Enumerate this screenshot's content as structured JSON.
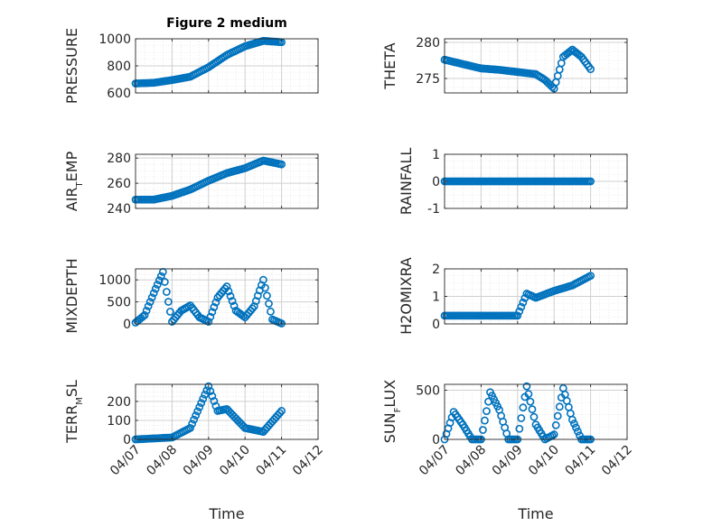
{
  "figure": {
    "title": "Figure 2 medium"
  },
  "style": {
    "marker_color": "#0072BD",
    "axis_color": "#262626",
    "grid_color": "#dedede"
  },
  "chart_data": [
    {
      "type": "scatter",
      "ylabel": "PRESSURE",
      "xlabel": "",
      "ylim": [
        600,
        1000
      ],
      "yticks": [
        600,
        800,
        1000
      ],
      "yticklabels": [
        "600",
        "800",
        "1000"
      ],
      "x": [
        "04/07 00:00",
        "04/07 12:00",
        "04/08 00:00",
        "04/08 12:00",
        "04/09 00:00",
        "04/09 12:00",
        "04/10 00:00",
        "04/10 12:00",
        "04/11 00:00"
      ],
      "values": [
        670,
        675,
        695,
        720,
        790,
        880,
        945,
        985,
        975
      ]
    },
    {
      "type": "scatter",
      "ylabel": "THETA",
      "xlabel": "",
      "ylim": [
        273,
        280.5
      ],
      "yticks": [
        275,
        280
      ],
      "yticklabels": [
        "275",
        "280"
      ],
      "x": [
        "04/07 00:00",
        "04/07 12:00",
        "04/08 00:00",
        "04/08 12:00",
        "04/09 00:00",
        "04/09 12:00",
        "04/09 18:00",
        "04/10 00:00",
        "04/10 06:00",
        "04/10 12:00",
        "04/10 18:00",
        "04/11 00:00"
      ],
      "values": [
        277.6,
        277.0,
        276.4,
        276.2,
        275.9,
        275.6,
        274.8,
        273.6,
        278.0,
        279.0,
        278.0,
        276.3
      ]
    },
    {
      "type": "scatter",
      "ylabel": "AIR_TEMP",
      "xlabel": "",
      "ylim": [
        240,
        283
      ],
      "yticks": [
        240,
        260,
        280
      ],
      "yticklabels": [
        "240",
        "260",
        "280"
      ],
      "x": [
        "04/07 00:00",
        "04/07 12:00",
        "04/08 00:00",
        "04/08 12:00",
        "04/09 00:00",
        "04/09 12:00",
        "04/10 00:00",
        "04/10 12:00",
        "04/11 00:00"
      ],
      "values": [
        247,
        247,
        250,
        255,
        262,
        268,
        272,
        278,
        275
      ]
    },
    {
      "type": "scatter",
      "ylabel": "RAINFALL",
      "xlabel": "",
      "ylim": [
        -1,
        1
      ],
      "yticks": [
        -1,
        0,
        1
      ],
      "yticklabels": [
        "-1",
        "0",
        "1"
      ],
      "x": [
        "04/07 00:00",
        "04/08 00:00",
        "04/09 00:00",
        "04/10 00:00",
        "04/11 00:00"
      ],
      "values": [
        0,
        0,
        0,
        0,
        0
      ]
    },
    {
      "type": "scatter",
      "ylabel": "MIXDEPTH",
      "xlabel": "",
      "ylim": [
        0,
        1250
      ],
      "yticks": [
        0,
        500,
        1000
      ],
      "yticklabels": [
        "0",
        "500",
        "1000"
      ],
      "x": [
        "04/07 00:00",
        "04/07 06:00",
        "04/07 12:00",
        "04/07 18:00",
        "04/08 00:00",
        "04/08 06:00",
        "04/08 12:00",
        "04/08 18:00",
        "04/09 00:00",
        "04/09 06:00",
        "04/09 12:00",
        "04/09 18:00",
        "04/10 00:00",
        "04/10 06:00",
        "04/10 12:00",
        "04/10 18:00",
        "04/11 00:00"
      ],
      "values": [
        30,
        200,
        700,
        1180,
        50,
        300,
        420,
        150,
        50,
        600,
        850,
        300,
        150,
        400,
        1000,
        100,
        10
      ]
    },
    {
      "type": "scatter",
      "ylabel": "H2OMIXRA",
      "xlabel": "",
      "ylim": [
        0,
        2
      ],
      "yticks": [
        0,
        1,
        2
      ],
      "yticklabels": [
        "0",
        "1",
        "2"
      ],
      "x": [
        "04/07 00:00",
        "04/07 12:00",
        "04/08 00:00",
        "04/08 12:00",
        "04/09 00:00",
        "04/09 06:00",
        "04/09 12:00",
        "04/10 00:00",
        "04/10 12:00",
        "04/11 00:00"
      ],
      "values": [
        0.3,
        0.3,
        0.3,
        0.3,
        0.3,
        1.1,
        0.95,
        1.2,
        1.4,
        1.75
      ]
    },
    {
      "type": "scatter",
      "ylabel": "TERR_MSL",
      "xlabel": "Time",
      "ylim": [
        0,
        290
      ],
      "yticks": [
        0,
        100,
        200
      ],
      "yticklabels": [
        "0",
        "100",
        "200"
      ],
      "xticklabels": [
        "04/07",
        "04/08",
        "04/09",
        "04/10",
        "04/11",
        "04/12"
      ],
      "x": [
        "04/07 00:00",
        "04/07 12:00",
        "04/08 00:00",
        "04/08 12:00",
        "04/09 00:00",
        "04/09 06:00",
        "04/09 12:00",
        "04/10 00:00",
        "04/10 12:00",
        "04/11 00:00"
      ],
      "values": [
        0,
        5,
        10,
        60,
        280,
        150,
        160,
        60,
        40,
        150
      ]
    },
    {
      "type": "scatter",
      "ylabel": "SUN_FLUX",
      "xlabel": "Time",
      "ylim": [
        0,
        560
      ],
      "yticks": [
        0,
        500
      ],
      "yticklabels": [
        "0",
        "500"
      ],
      "xticklabels": [
        "04/07",
        "04/08",
        "04/09",
        "04/10",
        "04/11",
        "04/12"
      ],
      "x": [
        "04/07 00:00",
        "04/07 06:00",
        "04/07 12:00",
        "04/07 18:00",
        "04/08 00:00",
        "04/08 06:00",
        "04/08 12:00",
        "04/08 18:00",
        "04/09 00:00",
        "04/09 06:00",
        "04/09 12:00",
        "04/09 18:00",
        "04/10 00:00",
        "04/10 06:00",
        "04/10 12:00",
        "04/10 18:00",
        "04/11 00:00"
      ],
      "values": [
        0,
        280,
        150,
        0,
        0,
        480,
        300,
        0,
        0,
        540,
        150,
        0,
        50,
        520,
        200,
        0,
        0
      ]
    }
  ]
}
